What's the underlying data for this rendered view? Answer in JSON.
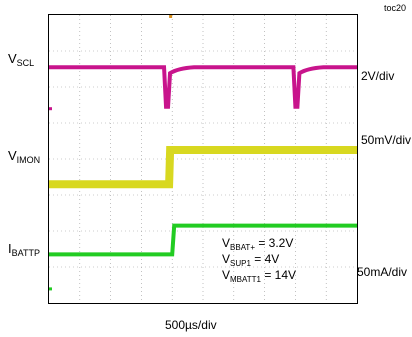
{
  "figure_id": "toc20",
  "chart_data": {
    "type": "line",
    "xlabel": "500µs/div",
    "x_per_div": "500µs",
    "grid": true,
    "grid_divisions": {
      "x": 10,
      "y": 8
    },
    "channels": [
      {
        "name_main": "V",
        "name_sub": "SCL",
        "scale": "2V/div",
        "color": "#c8148c",
        "level_div": 6.55,
        "events": [
          {
            "type": "dip",
            "time_div": 3.8,
            "depth_div": 1.1
          },
          {
            "type": "dip",
            "time_div": 8.0,
            "depth_div": 1.1
          }
        ]
      },
      {
        "name_main": "V",
        "name_sub": "IMON",
        "scale": "50mV/div",
        "color": "#d8d820",
        "step": {
          "time_div": 3.9,
          "from_div": 3.3,
          "to_div": 4.25
        }
      },
      {
        "name_main": "I",
        "name_sub": "BATTP",
        "scale": "50mA/div",
        "color": "#22cc22",
        "step": {
          "time_div": 4.0,
          "from_div": 1.35,
          "to_div": 2.15
        }
      }
    ],
    "annotations": [
      {
        "main": "V",
        "sub": "BBAT+",
        "value": " = 3.2V"
      },
      {
        "main": "V",
        "sub": "SUP1",
        "value": " = 4V"
      },
      {
        "main": "V",
        "sub": "MBATT1",
        "value": " = 14V"
      }
    ]
  }
}
